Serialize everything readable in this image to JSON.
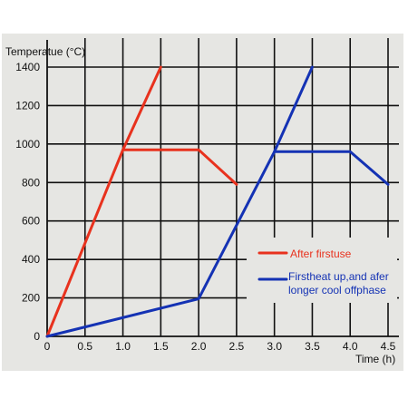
{
  "chart_data": {
    "type": "line",
    "xlabel": "Time (h)",
    "ylabel": "Temperatue (°C)",
    "xlim": [
      0,
      4.5
    ],
    "ylim": [
      0,
      1400
    ],
    "grid": true,
    "legend_position": "right",
    "x_ticks": [
      "0",
      "0.5",
      "1.0",
      "1.5",
      "2.0",
      "2.5",
      "3.0",
      "3.5",
      "4.0",
      "4.5"
    ],
    "y_ticks": [
      "0",
      "200",
      "400",
      "600",
      "800",
      "1000",
      "1200",
      "1400"
    ],
    "series": [
      {
        "name": "After firstuse",
        "color": "#e8321e",
        "x": [
          0,
          1.0,
          1.5
        ],
        "y": [
          0,
          970,
          1400
        ],
        "segments": [
          {
            "x": [
              0,
              1.0,
              1.5
            ],
            "y": [
              0,
              970,
              1400
            ]
          },
          {
            "x": [
              1.0,
              2.0,
              2.5
            ],
            "y": [
              970,
              970,
              790
            ]
          }
        ]
      },
      {
        "name": "Firstheat up,and afer longer cool offphase",
        "color": "#1432b4",
        "segments": [
          {
            "x": [
              0,
              2.0,
              3.0,
              3.5
            ],
            "y": [
              0,
              195,
              960,
              1400
            ]
          },
          {
            "x": [
              3.0,
              4.0,
              4.5
            ],
            "y": [
              960,
              960,
              790
            ]
          }
        ]
      }
    ]
  }
}
